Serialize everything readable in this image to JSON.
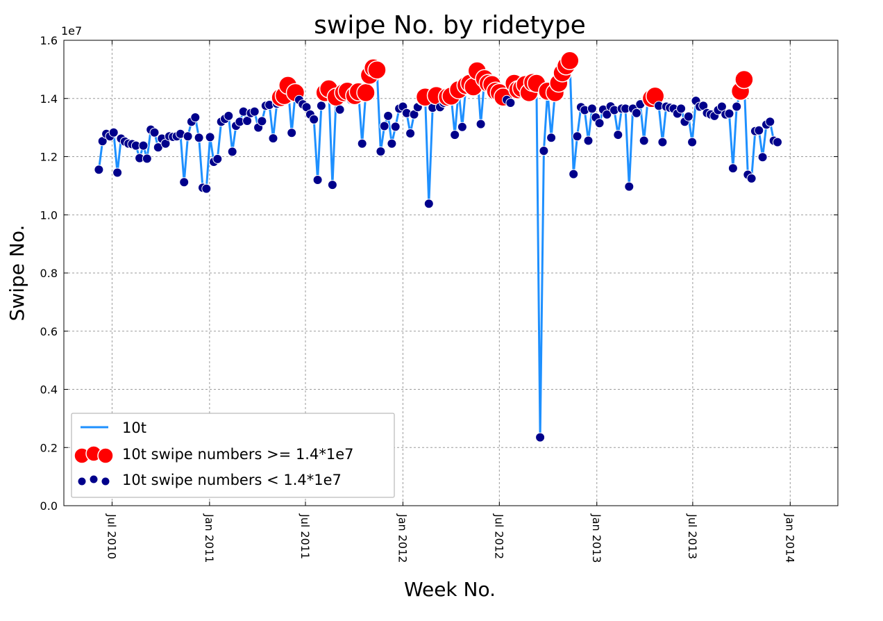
{
  "chart_data": {
    "type": "line",
    "title": "swipe No. by ridetype",
    "xlabel": "Week No.",
    "ylabel": "Swipe No.",
    "y_multiplier_label": "1e7",
    "ylim": [
      0.0,
      1.6
    ],
    "xlim": [
      "2010-04-01",
      "2014-04-01"
    ],
    "threshold": 1.4,
    "grid": true,
    "legend_position": "lower-left",
    "y_ticks": [
      "0.0",
      "0.2",
      "0.4",
      "0.6",
      "0.8",
      "1.0",
      "1.2",
      "1.4",
      "1.6"
    ],
    "x_ticks": [
      {
        "date": "2010-07-01",
        "label": "Jul 2010"
      },
      {
        "date": "2011-01-01",
        "label": "Jan 2011"
      },
      {
        "date": "2011-07-01",
        "label": "Jul 2011"
      },
      {
        "date": "2012-01-01",
        "label": "Jan 2012"
      },
      {
        "date": "2012-07-01",
        "label": "Jul 2012"
      },
      {
        "date": "2013-01-01",
        "label": "Jan 2013"
      },
      {
        "date": "2013-07-01",
        "label": "Jul 2013"
      },
      {
        "date": "2014-01-01",
        "label": "Jan 2014"
      }
    ],
    "series": [
      {
        "name": "10t",
        "color": "#1e90ff",
        "points": [
          [
            "2010-06-06",
            1.155
          ],
          [
            "2010-06-13",
            1.253
          ],
          [
            "2010-06-20",
            1.278
          ],
          [
            "2010-06-27",
            1.27
          ],
          [
            "2010-07-04",
            1.283
          ],
          [
            "2010-07-11",
            1.145
          ],
          [
            "2010-07-18",
            1.262
          ],
          [
            "2010-07-25",
            1.252
          ],
          [
            "2010-08-01",
            1.245
          ],
          [
            "2010-08-08",
            1.243
          ],
          [
            "2010-08-15",
            1.238
          ],
          [
            "2010-08-22",
            1.195
          ],
          [
            "2010-08-29",
            1.238
          ],
          [
            "2010-09-05",
            1.193
          ],
          [
            "2010-09-12",
            1.293
          ],
          [
            "2010-09-19",
            1.283
          ],
          [
            "2010-09-26",
            1.232
          ],
          [
            "2010-10-03",
            1.262
          ],
          [
            "2010-10-10",
            1.245
          ],
          [
            "2010-10-17",
            1.27
          ],
          [
            "2010-10-24",
            1.268
          ],
          [
            "2010-10-31",
            1.27
          ],
          [
            "2010-11-07",
            1.278
          ],
          [
            "2010-11-14",
            1.112
          ],
          [
            "2010-11-21",
            1.27
          ],
          [
            "2010-11-28",
            1.32
          ],
          [
            "2010-12-05",
            1.335
          ],
          [
            "2010-12-12",
            1.265
          ],
          [
            "2010-12-19",
            1.093
          ],
          [
            "2010-12-26",
            1.09
          ],
          [
            "2011-01-02",
            1.267
          ],
          [
            "2011-01-09",
            1.182
          ],
          [
            "2011-01-16",
            1.192
          ],
          [
            "2011-01-23",
            1.32
          ],
          [
            "2011-01-30",
            1.33
          ],
          [
            "2011-02-06",
            1.34
          ],
          [
            "2011-02-13",
            1.217
          ],
          [
            "2011-02-20",
            1.306
          ],
          [
            "2011-02-27",
            1.32
          ],
          [
            "2011-03-06",
            1.355
          ],
          [
            "2011-03-13",
            1.323
          ],
          [
            "2011-03-20",
            1.35
          ],
          [
            "2011-03-27",
            1.355
          ],
          [
            "2011-04-03",
            1.3
          ],
          [
            "2011-04-10",
            1.322
          ],
          [
            "2011-04-17",
            1.375
          ],
          [
            "2011-04-24",
            1.378
          ],
          [
            "2011-05-01",
            1.263
          ],
          [
            "2011-05-08",
            1.382
          ],
          [
            "2011-05-15",
            1.403
          ],
          [
            "2011-05-22",
            1.41
          ],
          [
            "2011-05-29",
            1.445
          ],
          [
            "2011-06-05",
            1.282
          ],
          [
            "2011-06-12",
            1.42
          ],
          [
            "2011-06-19",
            1.395
          ],
          [
            "2011-06-26",
            1.38
          ],
          [
            "2011-07-03",
            1.37
          ],
          [
            "2011-07-10",
            1.345
          ],
          [
            "2011-07-17",
            1.328
          ],
          [
            "2011-07-24",
            1.12
          ],
          [
            "2011-07-31",
            1.375
          ],
          [
            "2011-08-07",
            1.42
          ],
          [
            "2011-08-14",
            1.433
          ],
          [
            "2011-08-21",
            1.103
          ],
          [
            "2011-08-28",
            1.405
          ],
          [
            "2011-09-04",
            1.362
          ],
          [
            "2011-09-11",
            1.42
          ],
          [
            "2011-09-18",
            1.425
          ],
          [
            "2011-09-25",
            1.395
          ],
          [
            "2011-10-02",
            1.41
          ],
          [
            "2011-10-09",
            1.423
          ],
          [
            "2011-10-16",
            1.245
          ],
          [
            "2011-10-23",
            1.42
          ],
          [
            "2011-10-30",
            1.48
          ],
          [
            "2011-11-06",
            1.505
          ],
          [
            "2011-11-13",
            1.498
          ],
          [
            "2011-11-20",
            1.218
          ],
          [
            "2011-11-27",
            1.305
          ],
          [
            "2011-12-04",
            1.34
          ],
          [
            "2011-12-11",
            1.245
          ],
          [
            "2011-12-18",
            1.303
          ],
          [
            "2011-12-25",
            1.365
          ],
          [
            "2012-01-01",
            1.372
          ],
          [
            "2012-01-08",
            1.35
          ],
          [
            "2012-01-15",
            1.28
          ],
          [
            "2012-01-22",
            1.345
          ],
          [
            "2012-01-29",
            1.37
          ],
          [
            "2012-02-05",
            1.392
          ],
          [
            "2012-02-12",
            1.405
          ],
          [
            "2012-02-19",
            1.038
          ],
          [
            "2012-02-26",
            1.368
          ],
          [
            "2012-03-04",
            1.41
          ],
          [
            "2012-03-11",
            1.37
          ],
          [
            "2012-03-18",
            1.385
          ],
          [
            "2012-03-25",
            1.405
          ],
          [
            "2012-04-01",
            1.408
          ],
          [
            "2012-04-08",
            1.275
          ],
          [
            "2012-04-15",
            1.43
          ],
          [
            "2012-04-22",
            1.302
          ],
          [
            "2012-04-29",
            1.445
          ],
          [
            "2012-05-06",
            1.452
          ],
          [
            "2012-05-13",
            1.44
          ],
          [
            "2012-05-20",
            1.495
          ],
          [
            "2012-05-27",
            1.312
          ],
          [
            "2012-06-03",
            1.468
          ],
          [
            "2012-06-10",
            1.452
          ],
          [
            "2012-06-17",
            1.448
          ],
          [
            "2012-06-24",
            1.425
          ],
          [
            "2012-07-01",
            1.42
          ],
          [
            "2012-07-08",
            1.405
          ],
          [
            "2012-07-15",
            1.395
          ],
          [
            "2012-07-22",
            1.385
          ],
          [
            "2012-07-29",
            1.452
          ],
          [
            "2012-08-05",
            1.43
          ],
          [
            "2012-08-12",
            1.435
          ],
          [
            "2012-08-19",
            1.448
          ],
          [
            "2012-08-26",
            1.42
          ],
          [
            "2012-09-02",
            1.455
          ],
          [
            "2012-09-09",
            1.452
          ],
          [
            "2012-09-16",
            0.235
          ],
          [
            "2012-09-23",
            1.22
          ],
          [
            "2012-09-30",
            1.425
          ],
          [
            "2012-10-07",
            1.265
          ],
          [
            "2012-10-14",
            1.42
          ],
          [
            "2012-10-21",
            1.453
          ],
          [
            "2012-10-28",
            1.488
          ],
          [
            "2012-11-04",
            1.512
          ],
          [
            "2012-11-11",
            1.53
          ],
          [
            "2012-11-18",
            1.14
          ],
          [
            "2012-11-25",
            1.27
          ],
          [
            "2012-12-02",
            1.37
          ],
          [
            "2012-12-09",
            1.36
          ],
          [
            "2012-12-16",
            1.255
          ],
          [
            "2012-12-23",
            1.365
          ],
          [
            "2012-12-30",
            1.335
          ],
          [
            "2013-01-06",
            1.315
          ],
          [
            "2013-01-13",
            1.362
          ],
          [
            "2013-01-20",
            1.345
          ],
          [
            "2013-01-27",
            1.373
          ],
          [
            "2013-02-03",
            1.36
          ],
          [
            "2013-02-10",
            1.275
          ],
          [
            "2013-02-17",
            1.365
          ],
          [
            "2013-02-24",
            1.365
          ],
          [
            "2013-03-03",
            1.097
          ],
          [
            "2013-03-10",
            1.365
          ],
          [
            "2013-03-17",
            1.35
          ],
          [
            "2013-03-24",
            1.38
          ],
          [
            "2013-03-31",
            1.255
          ],
          [
            "2013-04-07",
            1.39
          ],
          [
            "2013-04-14",
            1.4
          ],
          [
            "2013-04-21",
            1.408
          ],
          [
            "2013-04-28",
            1.375
          ],
          [
            "2013-05-05",
            1.25
          ],
          [
            "2013-05-12",
            1.372
          ],
          [
            "2013-05-19",
            1.368
          ],
          [
            "2013-05-26",
            1.365
          ],
          [
            "2013-06-02",
            1.348
          ],
          [
            "2013-06-09",
            1.365
          ],
          [
            "2013-06-16",
            1.32
          ],
          [
            "2013-06-23",
            1.338
          ],
          [
            "2013-06-30",
            1.25
          ],
          [
            "2013-07-07",
            1.392
          ],
          [
            "2013-07-14",
            1.372
          ],
          [
            "2013-07-21",
            1.375
          ],
          [
            "2013-07-28",
            1.35
          ],
          [
            "2013-08-04",
            1.345
          ],
          [
            "2013-08-11",
            1.34
          ],
          [
            "2013-08-18",
            1.36
          ],
          [
            "2013-08-25",
            1.372
          ],
          [
            "2013-09-01",
            1.345
          ],
          [
            "2013-09-08",
            1.348
          ],
          [
            "2013-09-15",
            1.16
          ],
          [
            "2013-09-22",
            1.372
          ],
          [
            "2013-09-29",
            1.425
          ],
          [
            "2013-10-06",
            1.465
          ],
          [
            "2013-10-13",
            1.138
          ],
          [
            "2013-10-20",
            1.125
          ],
          [
            "2013-10-27",
            1.288
          ],
          [
            "2013-11-03",
            1.29
          ],
          [
            "2013-11-10",
            1.198
          ],
          [
            "2013-11-17",
            1.31
          ],
          [
            "2013-11-24",
            1.32
          ],
          [
            "2013-12-01",
            1.255
          ],
          [
            "2013-12-08",
            1.25
          ]
        ]
      }
    ],
    "legend": [
      {
        "label": "10t",
        "kind": "line",
        "color": "#1e90ff"
      },
      {
        "label": "10t swipe numbers >= 1.4*1e7",
        "kind": "big-dots",
        "color": "#ff0000"
      },
      {
        "label": "10t swipe numbers < 1.4*1e7",
        "kind": "small-dots",
        "color": "#00008b"
      }
    ],
    "marker_colors": {
      "high": "#ff0000",
      "low": "#00008b"
    }
  }
}
